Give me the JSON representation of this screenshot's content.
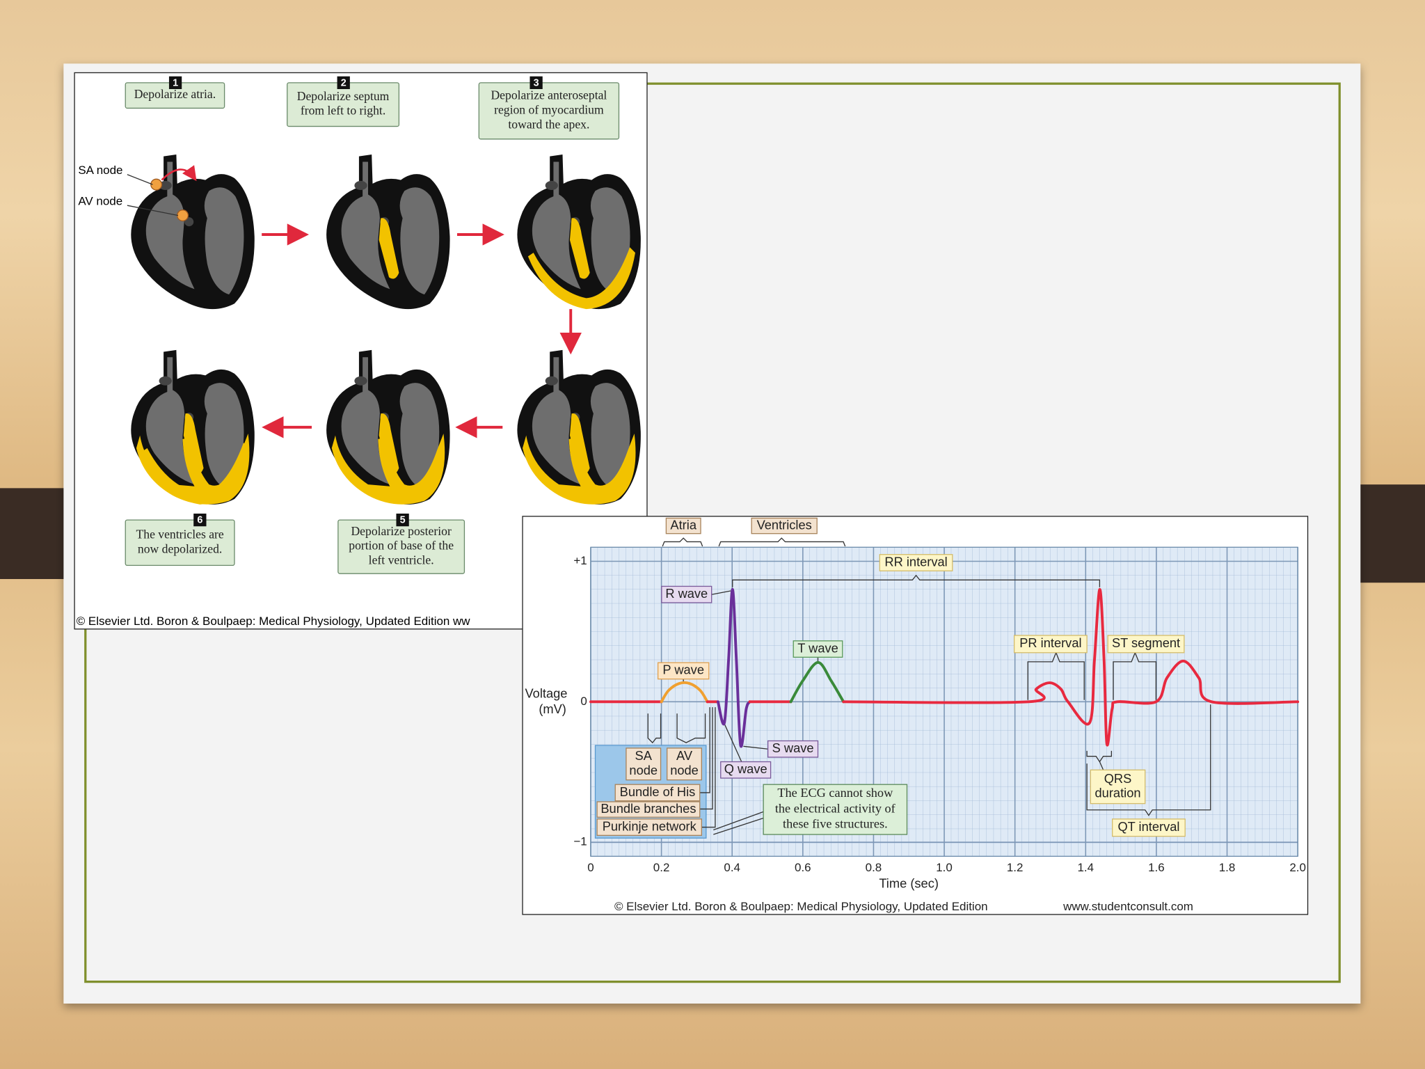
{
  "heart_diagram": {
    "steps": [
      {
        "number": 1,
        "caption": [
          "Depolarize atria."
        ]
      },
      {
        "number": 2,
        "caption": [
          "Depolarize septum",
          "from left to right."
        ]
      },
      {
        "number": 3,
        "caption": [
          "Depolarize anteroseptal",
          "region of myocardium",
          "toward the apex."
        ]
      },
      {
        "number": 5,
        "caption": [
          "Depolarize posterior",
          "portion of base of the",
          "left ventricle."
        ]
      },
      {
        "number": 6,
        "caption": [
          "The ventricles are",
          "now depolarized."
        ]
      }
    ],
    "labels": [
      "SA node",
      "AV node"
    ],
    "credit": "© Elsevier Ltd. Boron & Boulpaep: Medical Physiology, Updated Edition   ww"
  },
  "ecg": {
    "type": "line",
    "xlabel": "Time (sec)",
    "ylabel": [
      "Voltage",
      "(mV)"
    ],
    "xlim": [
      0,
      2
    ],
    "ylim": [
      -1.1,
      1.1
    ],
    "xticks": [
      0,
      0.2,
      0.4,
      0.6,
      0.8,
      {
        "value": 1,
        "label": "1.0"
      },
      1.2,
      1.4,
      1.6,
      1.8,
      {
        "value": 2,
        "label": "2.0"
      }
    ],
    "yticks": [
      {
        "value": 1,
        "label": "+1"
      },
      0,
      {
        "value": -1,
        "label": "−1"
      }
    ],
    "grid": true,
    "series": [
      {
        "color": "#e8293f",
        "x": [
          0,
          0.2
        ],
        "values": [
          0,
          0
        ]
      },
      {
        "color": "#f0a030",
        "x": [
          0.2,
          0.22,
          0.25,
          0.28,
          0.31,
          0.33
        ],
        "values": [
          0,
          0.08,
          0.13,
          0.13,
          0.08,
          0
        ]
      },
      {
        "color": "#e8293f",
        "x": [
          0.33,
          0.36
        ],
        "values": [
          0,
          0
        ]
      },
      {
        "color": "#6a2f9a",
        "x": [
          0.36,
          0.378,
          0.39,
          0.401,
          0.412,
          0.424,
          0.44,
          0.45
        ],
        "values": [
          0,
          -0.15,
          0.3,
          0.8,
          0.3,
          -0.31,
          -0.05,
          0
        ]
      },
      {
        "color": "#e8293f",
        "x": [
          0.45,
          0.566
        ],
        "values": [
          0,
          0
        ]
      },
      {
        "color": "#3a8a3a",
        "x": [
          0.566,
          0.6,
          0.643,
          0.68,
          0.715
        ],
        "values": [
          0,
          0.15,
          0.28,
          0.15,
          0
        ]
      },
      {
        "color": "#e8293f",
        "x": [
          0.715,
          1.239,
          1.26,
          1.298,
          1.33,
          1.35,
          1.411,
          1.425,
          1.44,
          1.452,
          1.46,
          1.475,
          1.49,
          1.599,
          1.63,
          1.676,
          1.72,
          1.756,
          2
        ],
        "values": [
          0,
          0,
          0.09,
          0.135,
          0.09,
          0,
          -0.15,
          0.3,
          0.8,
          0.3,
          -0.3,
          -0.05,
          0,
          0,
          0.17,
          0.29,
          0.17,
          0,
          0
        ]
      }
    ],
    "annotations": [
      "Atria",
      "Ventricles",
      "RR interval",
      "R wave",
      "T wave",
      "P wave",
      "PR interval",
      "ST segment",
      "S wave",
      "Q wave",
      [
        "SA",
        "node"
      ],
      [
        "AV",
        "node"
      ],
      "Bundle of His",
      "Bundle branches",
      "Purkinje network",
      [
        "QRS",
        "duration"
      ],
      "QT interval",
      [
        "The ECG cannot show",
        "the electrical activity of",
        "these five structures."
      ]
    ],
    "credit": "© Elsevier Ltd. Boron & Boulpaep: Medical Physiology, Updated Edition",
    "website": "www.studentconsult.com"
  }
}
